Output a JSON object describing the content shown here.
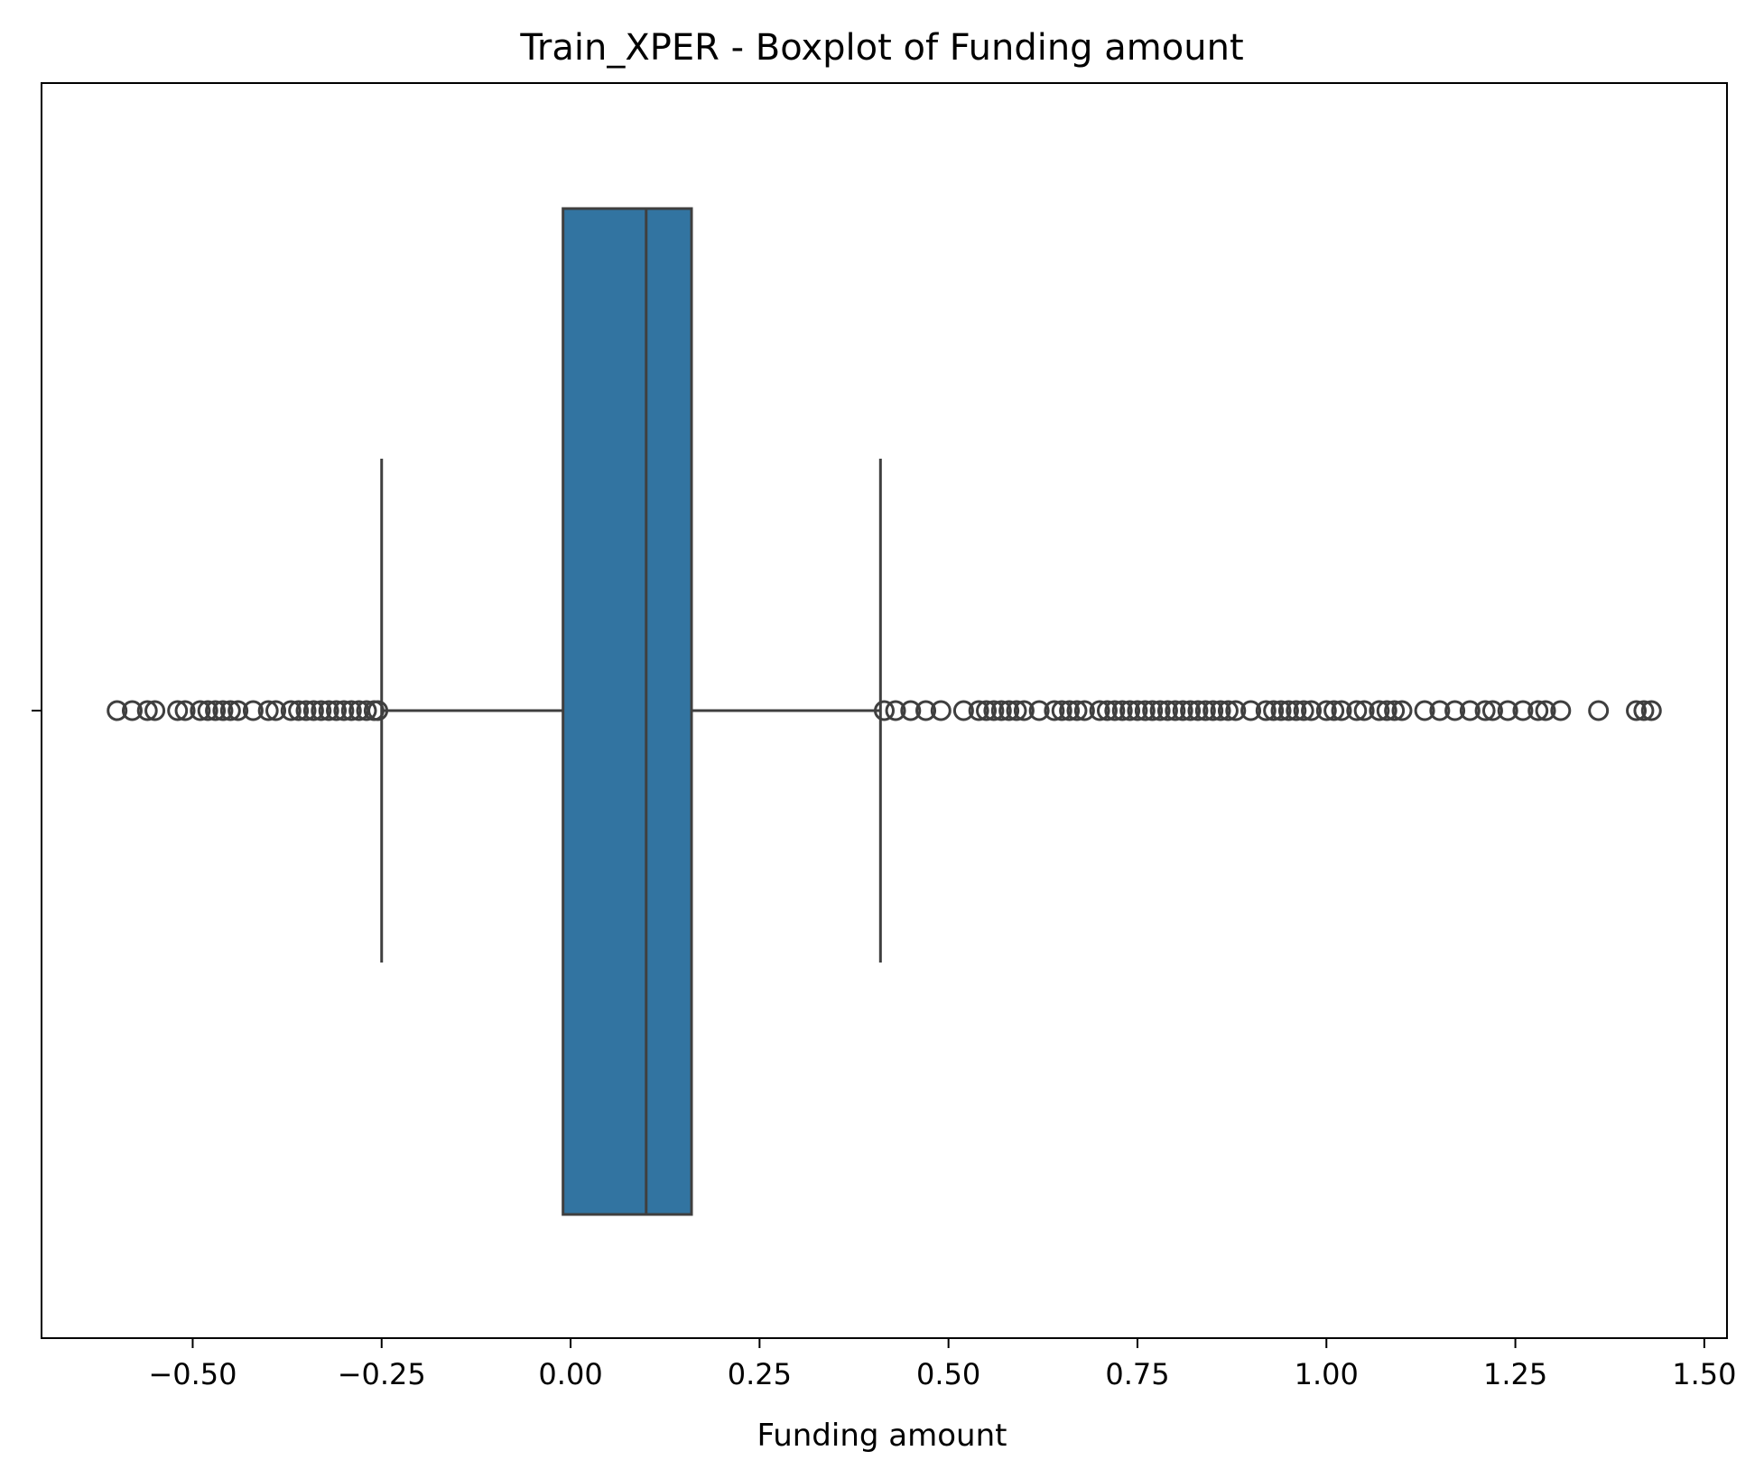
{
  "chart_data": {
    "type": "boxplot",
    "orientation": "horizontal",
    "title": "Train_XPER - Boxplot of Funding amount",
    "xlabel": "Funding amount",
    "ylabel": "",
    "xlim": [
      -0.7,
      1.53
    ],
    "xticks": [
      -0.5,
      -0.25,
      0.0,
      0.25,
      0.5,
      0.75,
      1.0,
      1.25,
      1.5
    ],
    "xtick_labels": [
      "−0.50",
      "−0.25",
      "0.00",
      "0.25",
      "0.50",
      "0.75",
      "1.00",
      "1.25",
      "1.50"
    ],
    "grid": false,
    "box": {
      "whisker_low": -0.25,
      "q1": -0.01,
      "median": 0.1,
      "q3": 0.16,
      "whisker_high": 0.41
    },
    "outliers": [
      -0.6,
      -0.58,
      -0.56,
      -0.55,
      -0.52,
      -0.51,
      -0.49,
      -0.48,
      -0.47,
      -0.46,
      -0.45,
      -0.44,
      -0.42,
      -0.4,
      -0.39,
      -0.37,
      -0.36,
      -0.35,
      -0.34,
      -0.33,
      -0.32,
      -0.31,
      -0.3,
      -0.29,
      -0.28,
      -0.27,
      -0.26,
      -0.255,
      0.415,
      0.43,
      0.45,
      0.47,
      0.49,
      0.52,
      0.54,
      0.55,
      0.56,
      0.57,
      0.58,
      0.59,
      0.6,
      0.62,
      0.64,
      0.65,
      0.66,
      0.67,
      0.68,
      0.7,
      0.71,
      0.72,
      0.73,
      0.74,
      0.75,
      0.76,
      0.77,
      0.78,
      0.79,
      0.8,
      0.81,
      0.82,
      0.83,
      0.84,
      0.85,
      0.86,
      0.87,
      0.88,
      0.9,
      0.92,
      0.93,
      0.94,
      0.95,
      0.96,
      0.97,
      0.98,
      1.0,
      1.01,
      1.02,
      1.04,
      1.05,
      1.07,
      1.08,
      1.09,
      1.1,
      1.13,
      1.15,
      1.17,
      1.19,
      1.21,
      1.22,
      1.24,
      1.26,
      1.28,
      1.29,
      1.31,
      1.36,
      1.41,
      1.42,
      1.43
    ],
    "colors": {
      "box_fill": "#3274a1",
      "line": "#3f3f3f",
      "axis": "#000000",
      "background": "#ffffff"
    }
  }
}
